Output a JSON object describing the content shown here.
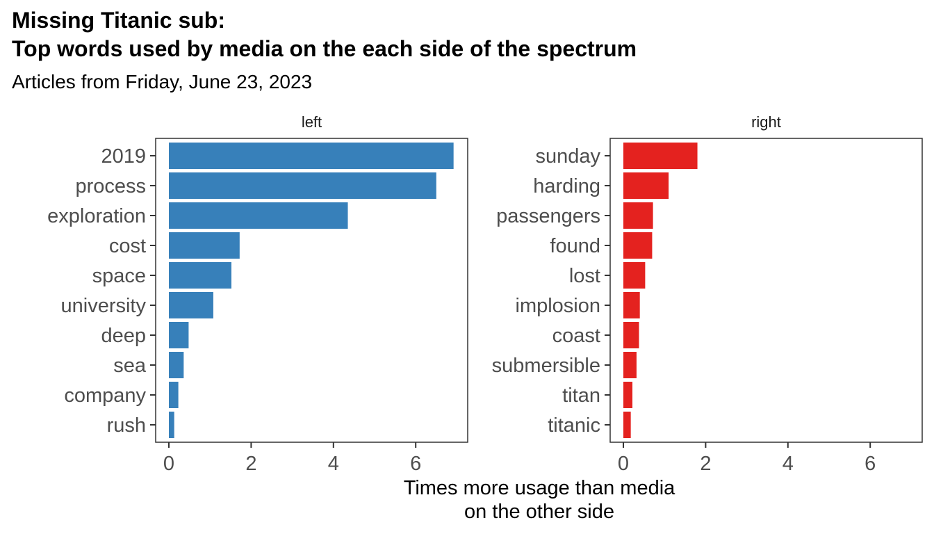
{
  "chart_data": {
    "type": "bar",
    "orientation": "horizontal",
    "title_line1": "Missing Titanic sub:",
    "title_line2": "Top words used by media on the each side of the spectrum",
    "subtitle": "Articles from Friday, June 23, 2023",
    "xlabel_line1": "Times more usage than media",
    "xlabel_line2": "on the other side",
    "xlim": [
      0,
      7.2
    ],
    "xticks": [
      0,
      2,
      4,
      6
    ],
    "grid": false,
    "panels": [
      {
        "name": "left",
        "color": "#3780BA",
        "categories": [
          "2019",
          "process",
          "exploration",
          "cost",
          "space",
          "university",
          "deep",
          "sea",
          "company",
          "rush"
        ],
        "values": [
          6.92,
          6.5,
          4.35,
          1.72,
          1.52,
          1.08,
          0.48,
          0.36,
          0.23,
          0.13
        ]
      },
      {
        "name": "right",
        "color": "#E4221F",
        "categories": [
          "sunday",
          "harding",
          "passengers",
          "found",
          "lost",
          "implosion",
          "coast",
          "submersible",
          "titan",
          "titanic"
        ],
        "values": [
          1.8,
          1.1,
          0.72,
          0.7,
          0.53,
          0.4,
          0.38,
          0.32,
          0.22,
          0.18
        ]
      }
    ]
  }
}
